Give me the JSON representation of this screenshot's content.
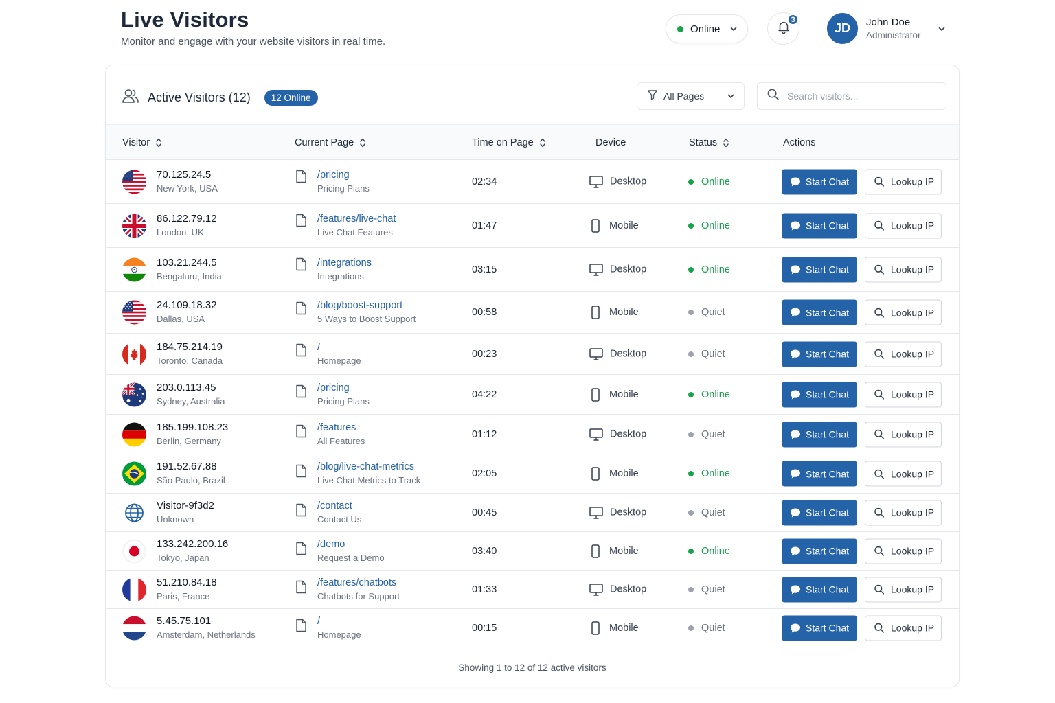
{
  "header": {
    "title": "Live Visitors",
    "subtitle": "Monitor and engage with your website visitors in real time.",
    "status_label": "Online",
    "notification_count": "3",
    "user": {
      "initials": "JD",
      "name": "John Doe",
      "role": "Administrator"
    }
  },
  "card": {
    "title": "Active Visitors (12)",
    "online_badge": "12 Online",
    "filter_label": "All Pages",
    "search_placeholder": "Search visitors...",
    "columns": [
      "Visitor",
      "Current Page",
      "Time on Page",
      "Device",
      "Status",
      "Actions"
    ],
    "footer": "Showing 1 to 12 of 12 active visitors"
  },
  "actions": {
    "chat_label": "Start Chat",
    "lookup_label": "Lookup IP"
  },
  "colors": {
    "accent": "#2563a8",
    "online": "#16a34a",
    "quiet": "#9ca3af"
  },
  "visitors": [
    {
      "ip": "70.125.24.5",
      "location": "New York, USA",
      "flag": "usa",
      "path": "/pricing",
      "page": "Pricing Plans",
      "time": "02:34",
      "device": "Desktop",
      "status": "Online"
    },
    {
      "ip": "86.122.79.12",
      "location": "London, UK",
      "flag": "uk",
      "path": "/features/live-chat",
      "page": "Live Chat Features",
      "time": "01:47",
      "device": "Mobile",
      "status": "Online"
    },
    {
      "ip": "103.21.244.5",
      "location": "Bengaluru, India",
      "flag": "india",
      "path": "/integrations",
      "page": "Integrations",
      "time": "03:15",
      "device": "Desktop",
      "status": "Online"
    },
    {
      "ip": "24.109.18.32",
      "location": "Dallas, USA",
      "flag": "usa",
      "path": "/blog/boost-support",
      "page": "5 Ways to Boost Support",
      "time": "00:58",
      "device": "Mobile",
      "status": "Quiet"
    },
    {
      "ip": "184.75.214.19",
      "location": "Toronto, Canada",
      "flag": "canada",
      "path": "/",
      "page": "Homepage",
      "time": "00:23",
      "device": "Desktop",
      "status": "Quiet"
    },
    {
      "ip": "203.0.113.45",
      "location": "Sydney, Australia",
      "flag": "australia",
      "path": "/pricing",
      "page": "Pricing Plans",
      "time": "04:22",
      "device": "Mobile",
      "status": "Online"
    },
    {
      "ip": "185.199.108.23",
      "location": "Berlin, Germany",
      "flag": "germany",
      "path": "/features",
      "page": "All Features",
      "time": "01:12",
      "device": "Desktop",
      "status": "Quiet"
    },
    {
      "ip": "191.52.67.88",
      "location": "São Paulo, Brazil",
      "flag": "brazil",
      "path": "/blog/live-chat-metrics",
      "page": "Live Chat Metrics to Track",
      "time": "02:05",
      "device": "Mobile",
      "status": "Online"
    },
    {
      "ip": "Visitor-9f3d2",
      "location": "Unknown",
      "flag": "globe",
      "path": "/contact",
      "page": "Contact Us",
      "time": "00:45",
      "device": "Desktop",
      "status": "Quiet"
    },
    {
      "ip": "133.242.200.16",
      "location": "Tokyo, Japan",
      "flag": "japan",
      "path": "/demo",
      "page": "Request a Demo",
      "time": "03:40",
      "device": "Mobile",
      "status": "Online"
    },
    {
      "ip": "51.210.84.18",
      "location": "Paris, France",
      "flag": "france",
      "path": "/features/chatbots",
      "page": "Chatbots for Support",
      "time": "01:33",
      "device": "Desktop",
      "status": "Quiet"
    },
    {
      "ip": "5.45.75.101",
      "location": "Amsterdam, Netherlands",
      "flag": "netherlands",
      "path": "/",
      "page": "Homepage",
      "time": "00:15",
      "device": "Mobile",
      "status": "Quiet"
    }
  ]
}
